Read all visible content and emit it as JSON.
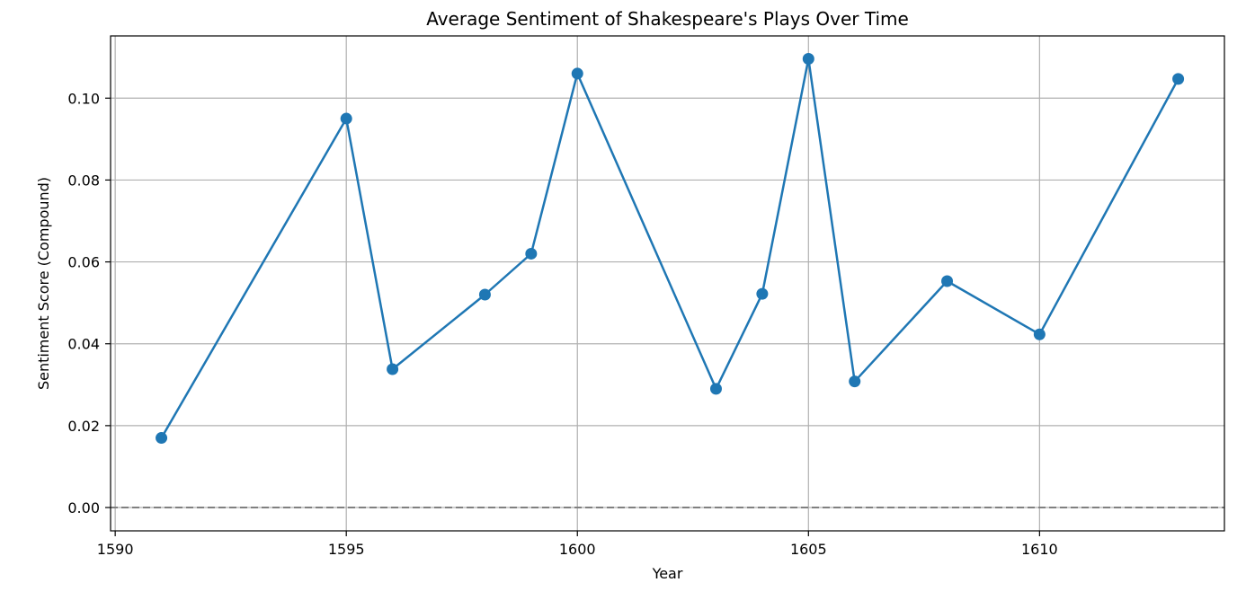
{
  "chart_data": {
    "type": "line",
    "title": "Average Sentiment of Shakespeare's Plays Over Time",
    "xlabel": "Year",
    "ylabel": "Sentiment Score (Compound)",
    "xlim": [
      1589.9,
      1614.0
    ],
    "ylim": [
      -0.0057,
      0.1152
    ],
    "xticks": [
      1590,
      1595,
      1600,
      1605,
      1610
    ],
    "yticks": [
      0.0,
      0.02,
      0.04,
      0.06,
      0.08,
      0.1
    ],
    "ytick_labels": [
      "0.00",
      "0.02",
      "0.04",
      "0.06",
      "0.08",
      "0.10"
    ],
    "grid": true,
    "reference_line": {
      "y": 0.0,
      "style": "dashed",
      "color": "#808080"
    },
    "series": [
      {
        "color": "#1f77b4",
        "marker": "circle",
        "x": [
          1591,
          1595,
          1596,
          1598,
          1599,
          1600,
          1603,
          1604,
          1605,
          1606,
          1608,
          1610,
          1613
        ],
        "y": [
          0.017,
          0.095,
          0.0338,
          0.052,
          0.062,
          0.106,
          0.029,
          0.0522,
          0.1096,
          0.0308,
          0.0553,
          0.0423,
          0.1047
        ]
      }
    ]
  }
}
